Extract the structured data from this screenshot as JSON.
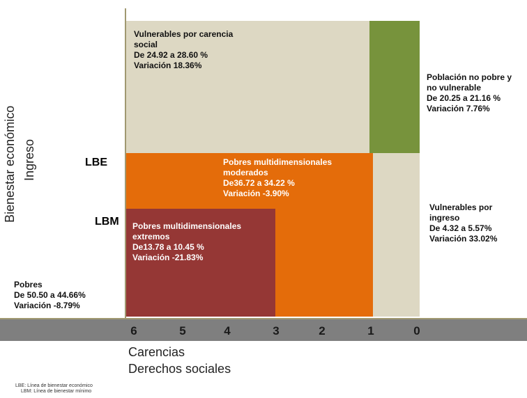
{
  "y_axis": {
    "label_line1": "Bienestar económico",
    "label_line2": "Ingreso",
    "lbe": "LBE",
    "lbm": "LBM"
  },
  "x_axis": {
    "numbers": [
      "6",
      "5",
      "4",
      "3",
      "2",
      "1",
      "0"
    ],
    "label_line1": "Carencias",
    "label_line2": "Derechos sociales"
  },
  "regions": {
    "vulnerables_carencia": [
      "Vulnerables por carencia",
      "social",
      "De 24.92 a 28.60 %",
      "Variación 18.36%"
    ],
    "no_pobre": [
      "Población no pobre y",
      "no vulnerable",
      "De 20.25 a 21.16 %",
      "Variación 7.76%"
    ],
    "moderados": [
      "Pobres multidimensionales",
      "moderados",
      "De36.72 a 34.22 %",
      "Variación -3.90%"
    ],
    "vulnerables_ingreso": [
      "Vulnerables por",
      "ingreso",
      "De 4.32 a 5.57%",
      "Variación 33.02%"
    ],
    "extremos": [
      "Pobres multidimensionales",
      "extremos",
      "De13.78 a 10.45 %",
      "Variación -21.83%"
    ],
    "pobres": [
      "Pobres",
      "De 50.50 a 44.66%",
      "Variación -8.79%"
    ]
  },
  "footnotes": [
    "LBE: Línea de bienestar económico",
    "LBM: Línea de bienestar mínimo"
  ]
}
